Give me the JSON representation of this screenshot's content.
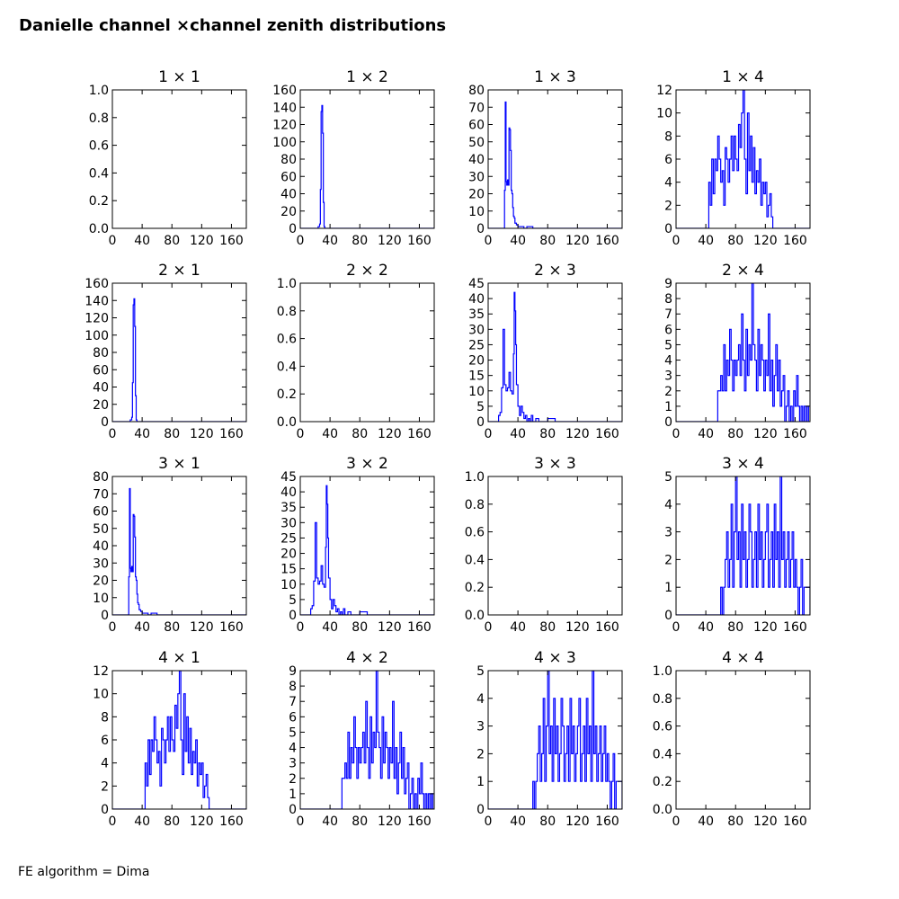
{
  "figure": {
    "title": "Danielle channel ×channel zenith distributions",
    "footer": "FE algorithm = Dima"
  },
  "colors": {
    "line": "#0000ff",
    "axes": "#000000",
    "background": "#ffffff"
  },
  "chart_data": [
    {
      "type": "line",
      "title": "1 × 1",
      "xlim": [
        0,
        180
      ],
      "ylim": [
        0,
        1
      ],
      "xticks": [
        0,
        40,
        80,
        120,
        160
      ],
      "yticks": [
        0.0,
        0.2,
        0.4,
        0.6,
        0.8,
        1.0
      ],
      "ytick_labels": [
        "0.0",
        "0.2",
        "0.4",
        "0.6",
        "0.8",
        "1.0"
      ],
      "step": true,
      "x": [],
      "y": []
    },
    {
      "type": "line",
      "title": "1 × 2",
      "xlim": [
        0,
        180
      ],
      "ylim": [
        0,
        160
      ],
      "xticks": [
        0,
        40,
        80,
        120,
        160
      ],
      "yticks": [
        0,
        20,
        40,
        60,
        80,
        100,
        120,
        140,
        160
      ],
      "step": true,
      "x": [
        0,
        24,
        26,
        27,
        28,
        29,
        30,
        31,
        32,
        33,
        180
      ],
      "y": [
        0,
        2,
        5,
        45,
        135,
        142,
        110,
        30,
        2,
        0,
        0
      ]
    },
    {
      "type": "line",
      "title": "1 × 3",
      "xlim": [
        0,
        180
      ],
      "ylim": [
        0,
        80
      ],
      "xticks": [
        0,
        40,
        80,
        120,
        160
      ],
      "yticks": [
        0,
        10,
        20,
        30,
        40,
        50,
        60,
        70,
        80
      ],
      "step": true,
      "x": [
        0,
        22,
        23,
        24,
        25,
        26,
        27,
        28,
        29,
        30,
        31,
        32,
        33,
        34,
        35,
        36,
        38,
        40,
        44,
        48,
        52,
        60,
        64,
        180
      ],
      "y": [
        0,
        22,
        73,
        27,
        25,
        28,
        25,
        58,
        57,
        45,
        22,
        20,
        12,
        7,
        6,
        3,
        2,
        1,
        1,
        0,
        1,
        0,
        0,
        0
      ]
    },
    {
      "type": "line",
      "title": "1 × 4",
      "xlim": [
        0,
        180
      ],
      "ylim": [
        0,
        12
      ],
      "xticks": [
        0,
        40,
        80,
        120,
        160
      ],
      "yticks": [
        0,
        2,
        4,
        6,
        8,
        10,
        12
      ],
      "step": true,
      "x": [
        0,
        44,
        46,
        48,
        50,
        52,
        54,
        56,
        58,
        60,
        62,
        64,
        66,
        68,
        70,
        72,
        74,
        76,
        78,
        80,
        82,
        84,
        86,
        88,
        90,
        92,
        94,
        96,
        98,
        100,
        102,
        104,
        106,
        108,
        110,
        112,
        114,
        116,
        118,
        120,
        122,
        124,
        126,
        128,
        130,
        180
      ],
      "y": [
        0,
        4,
        2,
        6,
        3,
        6,
        5,
        8,
        6,
        4,
        5,
        2,
        7,
        6,
        4,
        6,
        8,
        5,
        8,
        6,
        5,
        9,
        7,
        10,
        12,
        6,
        3,
        10,
        5,
        8,
        4,
        7,
        3,
        5,
        4,
        6,
        2,
        4,
        3,
        4,
        1,
        2,
        3,
        1,
        0,
        0
      ]
    },
    {
      "type": "line",
      "title": "2 × 1",
      "xlim": [
        0,
        180
      ],
      "ylim": [
        0,
        160
      ],
      "xticks": [
        0,
        40,
        80,
        120,
        160
      ],
      "yticks": [
        0,
        20,
        40,
        60,
        80,
        100,
        120,
        140,
        160
      ],
      "step": true,
      "x": [
        0,
        24,
        26,
        27,
        28,
        29,
        30,
        31,
        32,
        33,
        180
      ],
      "y": [
        0,
        2,
        5,
        45,
        135,
        142,
        110,
        30,
        2,
        0,
        0
      ]
    },
    {
      "type": "line",
      "title": "2 × 2",
      "xlim": [
        0,
        180
      ],
      "ylim": [
        0,
        1
      ],
      "xticks": [
        0,
        40,
        80,
        120,
        160
      ],
      "yticks": [
        0.0,
        0.2,
        0.4,
        0.6,
        0.8,
        1.0
      ],
      "ytick_labels": [
        "0.0",
        "0.2",
        "0.4",
        "0.6",
        "0.8",
        "1.0"
      ],
      "step": true,
      "x": [],
      "y": []
    },
    {
      "type": "line",
      "title": "2 × 3",
      "xlim": [
        0,
        180
      ],
      "ylim": [
        0,
        45
      ],
      "xticks": [
        0,
        40,
        80,
        120,
        160
      ],
      "yticks": [
        0,
        5,
        10,
        15,
        20,
        25,
        30,
        35,
        40,
        45
      ],
      "step": true,
      "x": [
        0,
        14,
        16,
        18,
        20,
        22,
        24,
        26,
        28,
        30,
        32,
        34,
        35,
        36,
        37,
        38,
        40,
        42,
        44,
        46,
        48,
        50,
        52,
        54,
        56,
        58,
        60,
        62,
        64,
        68,
        72,
        80,
        90,
        180
      ],
      "y": [
        0,
        2,
        3,
        11,
        30,
        12,
        10,
        11,
        16,
        10,
        9,
        22,
        42,
        36,
        25,
        12,
        5,
        2,
        5,
        3,
        1,
        2,
        0,
        1,
        0,
        2,
        0,
        0,
        1,
        0,
        0,
        1,
        0,
        0
      ]
    },
    {
      "type": "line",
      "title": "2 × 4",
      "xlim": [
        0,
        180
      ],
      "ylim": [
        0,
        9
      ],
      "xticks": [
        0,
        40,
        80,
        120,
        160
      ],
      "yticks": [
        0,
        1,
        2,
        3,
        4,
        5,
        6,
        7,
        8,
        9
      ],
      "step": true,
      "x": [
        0,
        56,
        58,
        60,
        62,
        64,
        66,
        68,
        70,
        72,
        74,
        76,
        78,
        80,
        82,
        84,
        86,
        88,
        90,
        92,
        94,
        96,
        98,
        100,
        102,
        104,
        106,
        108,
        110,
        112,
        114,
        116,
        118,
        120,
        122,
        124,
        126,
        128,
        130,
        132,
        134,
        136,
        138,
        140,
        142,
        144,
        146,
        148,
        150,
        152,
        154,
        156,
        158,
        160,
        162,
        164,
        166,
        168,
        170,
        172,
        174,
        176,
        178,
        180
      ],
      "y": [
        0,
        2,
        2,
        3,
        2,
        5,
        2,
        4,
        3,
        6,
        4,
        2,
        4,
        3,
        4,
        5,
        3,
        7,
        4,
        2,
        6,
        3,
        5,
        4,
        9,
        5,
        4,
        2,
        6,
        3,
        5,
        4,
        2,
        4,
        3,
        7,
        2,
        4,
        1,
        3,
        5,
        2,
        4,
        1,
        2,
        3,
        0,
        1,
        2,
        0,
        1,
        0,
        2,
        1,
        3,
        1,
        0,
        1,
        0,
        1,
        0,
        1,
        0,
        0
      ]
    },
    {
      "type": "line",
      "title": "3 × 1",
      "xlim": [
        0,
        180
      ],
      "ylim": [
        0,
        80
      ],
      "xticks": [
        0,
        40,
        80,
        120,
        160
      ],
      "yticks": [
        0,
        10,
        20,
        30,
        40,
        50,
        60,
        70,
        80
      ],
      "step": true,
      "x": [
        0,
        22,
        23,
        24,
        25,
        26,
        27,
        28,
        29,
        30,
        31,
        32,
        33,
        34,
        35,
        36,
        38,
        40,
        44,
        48,
        52,
        60,
        64,
        180
      ],
      "y": [
        0,
        22,
        73,
        27,
        25,
        28,
        25,
        58,
        57,
        45,
        22,
        20,
        12,
        7,
        6,
        3,
        2,
        1,
        1,
        0,
        1,
        0,
        0,
        0
      ]
    },
    {
      "type": "line",
      "title": "3 × 2",
      "xlim": [
        0,
        180
      ],
      "ylim": [
        0,
        45
      ],
      "xticks": [
        0,
        40,
        80,
        120,
        160
      ],
      "yticks": [
        0,
        5,
        10,
        15,
        20,
        25,
        30,
        35,
        40,
        45
      ],
      "step": true,
      "x": [
        0,
        14,
        16,
        18,
        20,
        22,
        24,
        26,
        28,
        30,
        32,
        34,
        35,
        36,
        37,
        38,
        40,
        42,
        44,
        46,
        48,
        50,
        52,
        54,
        56,
        58,
        60,
        62,
        64,
        68,
        72,
        80,
        90,
        180
      ],
      "y": [
        0,
        2,
        3,
        11,
        30,
        12,
        10,
        11,
        16,
        10,
        9,
        22,
        42,
        36,
        25,
        12,
        5,
        2,
        5,
        3,
        1,
        2,
        0,
        1,
        0,
        2,
        0,
        0,
        1,
        0,
        0,
        1,
        0,
        0
      ]
    },
    {
      "type": "line",
      "title": "3 × 3",
      "xlim": [
        0,
        180
      ],
      "ylim": [
        0,
        1
      ],
      "xticks": [
        0,
        40,
        80,
        120,
        160
      ],
      "yticks": [
        0.0,
        0.2,
        0.4,
        0.6,
        0.8,
        1.0
      ],
      "ytick_labels": [
        "0.0",
        "0.2",
        "0.4",
        "0.6",
        "0.8",
        "1.0"
      ],
      "step": true,
      "x": [],
      "y": []
    },
    {
      "type": "line",
      "title": "3 × 4",
      "xlim": [
        0,
        180
      ],
      "ylim": [
        0,
        5
      ],
      "xticks": [
        0,
        40,
        80,
        120,
        160
      ],
      "yticks": [
        0,
        1,
        2,
        3,
        4,
        5
      ],
      "step": true,
      "x": [
        0,
        60,
        62,
        64,
        66,
        68,
        70,
        72,
        74,
        76,
        78,
        80,
        82,
        84,
        86,
        88,
        90,
        92,
        94,
        96,
        98,
        100,
        102,
        104,
        106,
        108,
        110,
        112,
        114,
        116,
        118,
        120,
        122,
        124,
        126,
        128,
        130,
        132,
        134,
        136,
        138,
        140,
        142,
        144,
        146,
        148,
        150,
        152,
        154,
        156,
        158,
        160,
        162,
        164,
        166,
        168,
        170,
        172,
        180
      ],
      "y": [
        0,
        1,
        0,
        1,
        2,
        3,
        1,
        2,
        4,
        1,
        3,
        5,
        2,
        3,
        1,
        4,
        2,
        3,
        1,
        2,
        4,
        3,
        1,
        2,
        3,
        1,
        4,
        2,
        3,
        1,
        2,
        3,
        4,
        1,
        2,
        3,
        1,
        4,
        2,
        3,
        1,
        5,
        2,
        3,
        1,
        2,
        3,
        1,
        2,
        3,
        1,
        2,
        1,
        0,
        1,
        2,
        0,
        1,
        0
      ]
    },
    {
      "type": "line",
      "title": "4 × 1",
      "xlim": [
        0,
        180
      ],
      "ylim": [
        0,
        12
      ],
      "xticks": [
        0,
        40,
        80,
        120,
        160
      ],
      "yticks": [
        0,
        2,
        4,
        6,
        8,
        10,
        12
      ],
      "step": true,
      "x": [
        0,
        44,
        46,
        48,
        50,
        52,
        54,
        56,
        58,
        60,
        62,
        64,
        66,
        68,
        70,
        72,
        74,
        76,
        78,
        80,
        82,
        84,
        86,
        88,
        90,
        92,
        94,
        96,
        98,
        100,
        102,
        104,
        106,
        108,
        110,
        112,
        114,
        116,
        118,
        120,
        122,
        124,
        126,
        128,
        130,
        180
      ],
      "y": [
        0,
        4,
        2,
        6,
        3,
        6,
        5,
        8,
        6,
        4,
        5,
        2,
        7,
        6,
        4,
        6,
        8,
        5,
        8,
        6,
        5,
        9,
        7,
        10,
        12,
        6,
        3,
        10,
        5,
        8,
        4,
        7,
        3,
        5,
        4,
        6,
        2,
        4,
        3,
        4,
        1,
        2,
        3,
        1,
        0,
        0
      ]
    },
    {
      "type": "line",
      "title": "4 × 2",
      "xlim": [
        0,
        180
      ],
      "ylim": [
        0,
        9
      ],
      "xticks": [
        0,
        40,
        80,
        120,
        160
      ],
      "yticks": [
        0,
        1,
        2,
        3,
        4,
        5,
        6,
        7,
        8,
        9
      ],
      "step": true,
      "x": [
        0,
        56,
        58,
        60,
        62,
        64,
        66,
        68,
        70,
        72,
        74,
        76,
        78,
        80,
        82,
        84,
        86,
        88,
        90,
        92,
        94,
        96,
        98,
        100,
        102,
        104,
        106,
        108,
        110,
        112,
        114,
        116,
        118,
        120,
        122,
        124,
        126,
        128,
        130,
        132,
        134,
        136,
        138,
        140,
        142,
        144,
        146,
        148,
        150,
        152,
        154,
        156,
        158,
        160,
        162,
        164,
        166,
        168,
        170,
        172,
        174,
        176,
        178,
        180
      ],
      "y": [
        0,
        2,
        2,
        3,
        2,
        5,
        2,
        4,
        3,
        6,
        4,
        2,
        4,
        3,
        4,
        5,
        3,
        7,
        4,
        2,
        6,
        3,
        5,
        4,
        9,
        5,
        4,
        2,
        6,
        3,
        5,
        4,
        2,
        4,
        3,
        7,
        2,
        4,
        1,
        3,
        5,
        2,
        4,
        1,
        2,
        3,
        0,
        1,
        2,
        0,
        1,
        0,
        2,
        1,
        3,
        1,
        0,
        1,
        0,
        1,
        0,
        1,
        0,
        0
      ]
    },
    {
      "type": "line",
      "title": "4 × 3",
      "xlim": [
        0,
        180
      ],
      "ylim": [
        0,
        5
      ],
      "xticks": [
        0,
        40,
        80,
        120,
        160
      ],
      "yticks": [
        0,
        1,
        2,
        3,
        4,
        5
      ],
      "step": true,
      "x": [
        0,
        60,
        62,
        64,
        66,
        68,
        70,
        72,
        74,
        76,
        78,
        80,
        82,
        84,
        86,
        88,
        90,
        92,
        94,
        96,
        98,
        100,
        102,
        104,
        106,
        108,
        110,
        112,
        114,
        116,
        118,
        120,
        122,
        124,
        126,
        128,
        130,
        132,
        134,
        136,
        138,
        140,
        142,
        144,
        146,
        148,
        150,
        152,
        154,
        156,
        158,
        160,
        162,
        164,
        166,
        168,
        170,
        172,
        180
      ],
      "y": [
        0,
        1,
        0,
        1,
        2,
        3,
        1,
        2,
        4,
        1,
        3,
        5,
        2,
        3,
        1,
        4,
        2,
        3,
        1,
        2,
        4,
        3,
        1,
        2,
        3,
        1,
        4,
        2,
        3,
        1,
        2,
        3,
        4,
        1,
        2,
        3,
        1,
        4,
        2,
        3,
        1,
        5,
        2,
        3,
        1,
        2,
        3,
        1,
        2,
        3,
        1,
        2,
        1,
        0,
        1,
        2,
        0,
        1,
        0
      ]
    },
    {
      "type": "line",
      "title": "4 × 4",
      "xlim": [
        0,
        180
      ],
      "ylim": [
        0,
        1
      ],
      "xticks": [
        0,
        40,
        80,
        120,
        160
      ],
      "yticks": [
        0.0,
        0.2,
        0.4,
        0.6,
        0.8,
        1.0
      ],
      "ytick_labels": [
        "0.0",
        "0.2",
        "0.4",
        "0.6",
        "0.8",
        "1.0"
      ],
      "step": true,
      "x": [],
      "y": []
    }
  ]
}
